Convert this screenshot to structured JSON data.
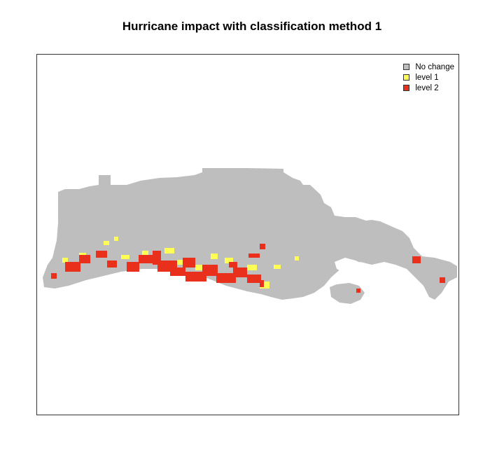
{
  "title": "Hurricane impact with classification method 1",
  "legend": [
    {
      "label": "No change",
      "color": "#bebebe"
    },
    {
      "label": "level 1",
      "color": "#ffff55"
    },
    {
      "label": "level 2",
      "color": "#e8301c"
    }
  ],
  "colors": {
    "land": "#bebebe",
    "level1": "#ffff55",
    "level2": "#e8301c",
    "frame": "#333333"
  }
}
